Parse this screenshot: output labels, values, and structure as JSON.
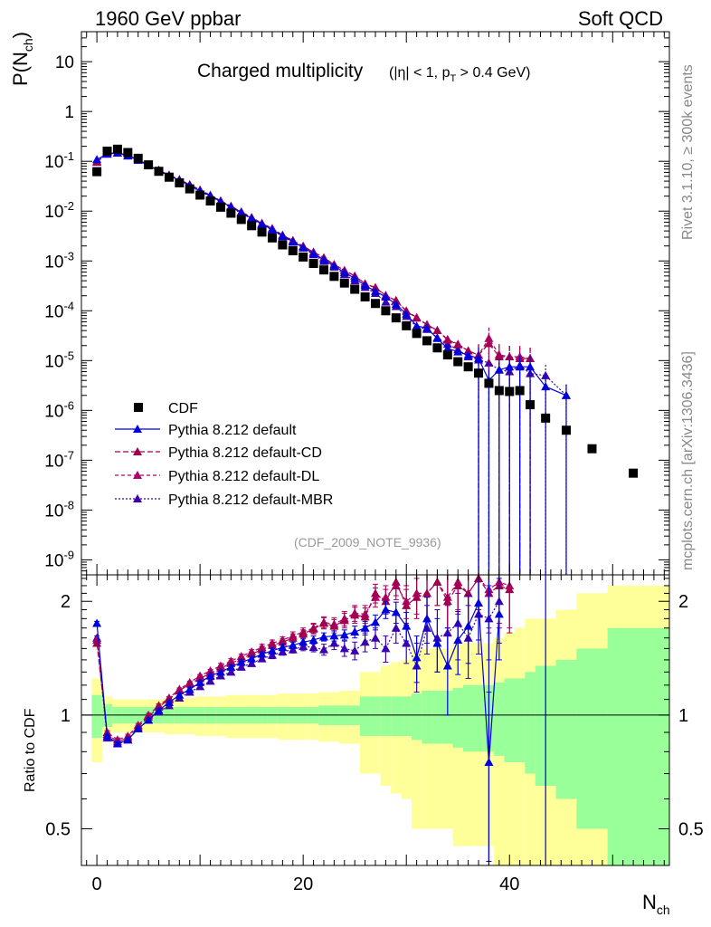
{
  "header": {
    "left": "1960 GeV ppbar",
    "right": "Soft QCD"
  },
  "side_labels": {
    "rivet": "Rivet 3.1.10, ≥ 300k events",
    "mcplots": "mcplots.cern.ch [arXiv:1306.3436]"
  },
  "analysis_id": "(CDF_2009_NOTE_9936)",
  "colors": {
    "cdf": "#000000",
    "default": "#0000dd",
    "cd": "#a0004d",
    "dl": "#b0006a",
    "mbr": "#3a00b0",
    "band_inner": "#99ff99",
    "band_outer": "#ffff99"
  },
  "chart_data": {
    "type": "scatter",
    "title": "Charged multiplicity",
    "title_cut": "(|η| < 1, p_T > 0.4 GeV)",
    "xlabel": "N_ch",
    "ylabel": "P(N_ch)",
    "ratio_ylabel": "Ratio to CDF",
    "xlim": [
      -1.5,
      55.5
    ],
    "ylim": [
      5e-10,
      40
    ],
    "ratio_ylim": [
      0.4,
      2.35
    ],
    "x_ticks": [
      "0",
      "20",
      "40"
    ],
    "y_ticks": [
      "10^-9",
      "10^-8",
      "10^-7",
      "10^-6",
      "10^-5",
      "10^-4",
      "10^-3",
      "10^-2",
      "10^-1",
      "1",
      "10"
    ],
    "ratio_ticks": [
      "0.5",
      "1",
      "2"
    ],
    "legend": [
      "CDF",
      "Pythia 8.212 default",
      "Pythia 8.212 default-CD",
      "Pythia 8.212 default-DL",
      "Pythia 8.212 default-MBR"
    ],
    "cdf": {
      "x": [
        0,
        1,
        2,
        3,
        4,
        5,
        6,
        7,
        8,
        9,
        10,
        11,
        12,
        13,
        14,
        15,
        16,
        17,
        18,
        19,
        20,
        21,
        22,
        23,
        24,
        25,
        26,
        27,
        28,
        29,
        30,
        31,
        32,
        33,
        34,
        35,
        36,
        37,
        38,
        39,
        40,
        41,
        42,
        43.5,
        45.5,
        48,
        52
      ],
      "y": [
        0.062,
        0.16,
        0.175,
        0.15,
        0.115,
        0.085,
        0.063,
        0.048,
        0.037,
        0.028,
        0.021,
        0.016,
        0.012,
        0.0091,
        0.0068,
        0.0051,
        0.0038,
        0.0029,
        0.0021,
        0.0016,
        0.0012,
        0.00089,
        0.00066,
        0.00049,
        0.00036,
        0.00027,
        0.00019,
        0.00014,
        0.0001,
        7.2e-05,
        5e-05,
        3.5e-05,
        2.5e-05,
        1.8e-05,
        1.3e-05,
        9.5e-06,
        7.5e-06,
        5.6e-06,
        3.5e-06,
        2.5e-06,
        2.4e-06,
        2.5e-06,
        1.3e-06,
        7e-07,
        4e-07,
        1.7e-07,
        5.5e-08
      ]
    },
    "series": [
      {
        "name": "Pythia 8.212 default",
        "key": "default",
        "dash": "",
        "x": [
          0,
          1,
          2,
          3,
          4,
          5,
          6,
          7,
          8,
          9,
          10,
          11,
          12,
          13,
          14,
          15,
          16,
          17,
          18,
          19,
          20,
          21,
          22,
          23,
          24,
          25,
          26,
          27,
          28,
          29,
          30,
          31,
          32,
          33,
          34,
          35,
          36,
          37,
          38,
          39,
          40,
          41,
          42,
          43.5,
          45.5
        ],
        "ratio": [
          1.75,
          0.88,
          0.84,
          0.86,
          0.92,
          0.97,
          1.03,
          1.08,
          1.13,
          1.17,
          1.22,
          1.27,
          1.3,
          1.34,
          1.38,
          1.41,
          1.45,
          1.48,
          1.51,
          1.53,
          1.56,
          1.58,
          1.61,
          1.62,
          1.63,
          1.66,
          1.7,
          1.76,
          1.9,
          1.87,
          1.72,
          1.42,
          1.8,
          1.55,
          1.35,
          1.58,
          1.72,
          1.98,
          0.75,
          1.85,
          null,
          null,
          null,
          null,
          null
        ],
        "ratio_err": [
          0.02,
          0.01,
          0.01,
          0.01,
          0.01,
          0.01,
          0.01,
          0.01,
          0.01,
          0.01,
          0.01,
          0.01,
          0.01,
          0.02,
          0.02,
          0.02,
          0.02,
          0.02,
          0.03,
          0.03,
          0.03,
          0.04,
          0.04,
          0.05,
          0.05,
          0.06,
          0.07,
          0.08,
          0.1,
          0.12,
          0.15,
          0.2,
          0.25,
          0.25,
          0.35,
          0.3,
          0.35,
          0.4,
          0.4,
          0.45,
          null,
          null,
          null,
          null,
          null
        ],
        "y_extra": {
          "38": 4e-06,
          "39": 6.5e-06,
          "40": 7.5e-06,
          "41": 7.5e-06,
          "42": 7.5e-06,
          "43.5": 3e-06,
          "45.5": 2e-06
        }
      },
      {
        "name": "Pythia 8.212 default-CD",
        "key": "cd",
        "dash": "6,3",
        "x": [
          0,
          1,
          2,
          3,
          4,
          5,
          6,
          7,
          8,
          9,
          10,
          11,
          12,
          13,
          14,
          15,
          16,
          17,
          18,
          19,
          20,
          21,
          22,
          23,
          24,
          25,
          26,
          27,
          28,
          29,
          30,
          31,
          32,
          33,
          34,
          35,
          36,
          37,
          38,
          39,
          40,
          41,
          42,
          43.5,
          45.5
        ],
        "ratio": [
          1.55,
          0.89,
          0.85,
          0.87,
          0.93,
          0.99,
          1.05,
          1.1,
          1.16,
          1.21,
          1.25,
          1.29,
          1.33,
          1.37,
          1.41,
          1.45,
          1.49,
          1.53,
          1.56,
          1.6,
          1.64,
          1.69,
          1.75,
          1.72,
          1.78,
          1.84,
          1.82,
          2.1,
          2.0,
          2.25,
          1.95,
          2.05,
          2.1,
          2.25,
          2.0,
          2.2,
          2.1,
          2.3,
          2.1,
          2.2,
          2.15,
          null,
          null,
          null,
          null
        ],
        "ratio_err": [
          0.02,
          0.01,
          0.01,
          0.01,
          0.01,
          0.01,
          0.01,
          0.01,
          0.01,
          0.01,
          0.01,
          0.01,
          0.02,
          0.02,
          0.02,
          0.02,
          0.03,
          0.03,
          0.03,
          0.04,
          0.04,
          0.05,
          0.06,
          0.07,
          0.08,
          0.09,
          0.1,
          0.12,
          0.15,
          0.18,
          0.2,
          0.25,
          0.3,
          0.3,
          0.35,
          0.35,
          0.4,
          0.4,
          0.45,
          0.5,
          0.5,
          null,
          null,
          null,
          null
        ],
        "y_extra": {
          "38": 2.2e-05,
          "39": 1.2e-05,
          "40": 1.2e-05,
          "41": 1.1e-05,
          "42": 1.1e-05
        }
      },
      {
        "name": "Pythia 8.212 default-DL",
        "key": "dl",
        "dash": "4,3",
        "x": [
          0,
          1,
          2,
          3,
          4,
          5,
          6,
          7,
          8,
          9,
          10,
          11,
          12,
          13,
          14,
          15,
          16,
          17,
          18,
          19,
          20,
          21,
          22,
          23,
          24,
          25,
          26,
          27,
          28,
          29,
          30,
          31,
          32,
          33,
          34,
          35,
          36,
          37,
          38,
          39,
          40,
          41,
          42,
          43.5,
          45.5
        ],
        "ratio": [
          1.58,
          0.9,
          0.86,
          0.88,
          0.94,
          1.0,
          1.06,
          1.11,
          1.17,
          1.22,
          1.27,
          1.31,
          1.35,
          1.39,
          1.43,
          1.47,
          1.51,
          1.55,
          1.58,
          1.62,
          1.66,
          1.7,
          1.76,
          1.74,
          1.8,
          1.86,
          1.85,
          2.05,
          2.05,
          2.2,
          2.0,
          2.1,
          2.1,
          2.25,
          2.05,
          2.25,
          2.1,
          2.3,
          2.15,
          2.25,
          2.2,
          null,
          null,
          null,
          null
        ],
        "ratio_err": [
          0.02,
          0.01,
          0.01,
          0.01,
          0.01,
          0.01,
          0.01,
          0.01,
          0.01,
          0.01,
          0.01,
          0.01,
          0.02,
          0.02,
          0.02,
          0.02,
          0.03,
          0.03,
          0.03,
          0.04,
          0.04,
          0.05,
          0.06,
          0.07,
          0.08,
          0.09,
          0.1,
          0.12,
          0.15,
          0.18,
          0.2,
          0.25,
          0.3,
          0.3,
          0.35,
          0.35,
          0.4,
          0.4,
          0.45,
          0.5,
          0.5,
          null,
          null,
          null,
          null
        ],
        "y_extra": {
          "38": 2.8e-05,
          "39": 1.3e-05,
          "40": 1.2e-05,
          "41": 1.2e-05,
          "42": 1.1e-05
        }
      },
      {
        "name": "Pythia 8.212 default-MBR",
        "key": "mbr",
        "dash": "2,2",
        "x": [
          0,
          1,
          2,
          3,
          4,
          5,
          6,
          7,
          8,
          9,
          10,
          11,
          12,
          13,
          14,
          15,
          16,
          17,
          18,
          19,
          20,
          21,
          22,
          23,
          24,
          25,
          26,
          27,
          28,
          29,
          30,
          31,
          32,
          33,
          34,
          35,
          36,
          37,
          38,
          39,
          40,
          41,
          42,
          43.5,
          45.5
        ],
        "ratio": [
          1.6,
          0.87,
          0.84,
          0.86,
          0.92,
          0.97,
          1.02,
          1.06,
          1.11,
          1.15,
          1.19,
          1.23,
          1.27,
          1.3,
          1.34,
          1.37,
          1.41,
          1.44,
          1.47,
          1.49,
          1.52,
          1.51,
          1.49,
          1.55,
          1.5,
          1.48,
          1.56,
          1.6,
          1.5,
          1.7,
          1.55,
          1.35,
          1.7,
          1.6,
          1.65,
          1.75,
          1.6,
          1.85,
          1.8,
          2.0,
          null,
          null,
          null,
          null,
          null
        ],
        "ratio_err": [
          0.02,
          0.01,
          0.01,
          0.01,
          0.01,
          0.01,
          0.01,
          0.01,
          0.01,
          0.01,
          0.01,
          0.01,
          0.01,
          0.02,
          0.02,
          0.02,
          0.02,
          0.03,
          0.03,
          0.03,
          0.04,
          0.04,
          0.05,
          0.06,
          0.07,
          0.08,
          0.09,
          0.1,
          0.12,
          0.15,
          0.18,
          0.2,
          0.25,
          0.3,
          0.3,
          0.35,
          0.35,
          0.4,
          0.4,
          0.45,
          null,
          null,
          null,
          null,
          null
        ],
        "y_extra": {
          "38": 9e-06,
          "39": 6.5e-06,
          "40": 6e-06,
          "41": 8e-06,
          "42": 5.5e-06,
          "43.5": 5e-06,
          "45.5": 2e-06
        }
      }
    ],
    "band": {
      "x_edges": [
        -0.5,
        0.5,
        1.5,
        2.5,
        3.5,
        4.5,
        5.5,
        6.5,
        7.5,
        8.5,
        9.5,
        10.5,
        11.5,
        12.5,
        13.5,
        14.5,
        15.5,
        16.5,
        17.5,
        18.5,
        19.5,
        20.5,
        21.5,
        22.5,
        23.5,
        24.5,
        25.5,
        26.5,
        27.5,
        28.5,
        29.5,
        30.5,
        31.5,
        32.5,
        33.5,
        34.5,
        35.5,
        36.5,
        37.5,
        38.5,
        39.5,
        40.5,
        41.5,
        42.5,
        44.5,
        46.5,
        49.5,
        55.5
      ],
      "inner": [
        0.13,
        0.07,
        0.05,
        0.05,
        0.05,
        0.05,
        0.05,
        0.05,
        0.05,
        0.05,
        0.05,
        0.05,
        0.05,
        0.05,
        0.05,
        0.05,
        0.05,
        0.05,
        0.05,
        0.05,
        0.05,
        0.05,
        0.06,
        0.06,
        0.06,
        0.06,
        0.12,
        0.12,
        0.12,
        0.12,
        0.12,
        0.14,
        0.16,
        0.16,
        0.16,
        0.18,
        0.2,
        0.2,
        0.2,
        0.22,
        0.25,
        0.25,
        0.3,
        0.35,
        0.4,
        0.5,
        0.7
      ],
      "outer": [
        0.25,
        0.12,
        0.1,
        0.1,
        0.1,
        0.1,
        0.1,
        0.11,
        0.11,
        0.11,
        0.12,
        0.12,
        0.12,
        0.13,
        0.13,
        0.13,
        0.13,
        0.13,
        0.14,
        0.14,
        0.14,
        0.14,
        0.15,
        0.15,
        0.16,
        0.16,
        0.3,
        0.3,
        0.35,
        0.38,
        0.4,
        0.5,
        0.5,
        0.5,
        0.5,
        0.55,
        0.55,
        0.55,
        0.55,
        0.6,
        0.65,
        0.7,
        0.8,
        0.8,
        0.9,
        1.1,
        1.2
      ]
    }
  }
}
